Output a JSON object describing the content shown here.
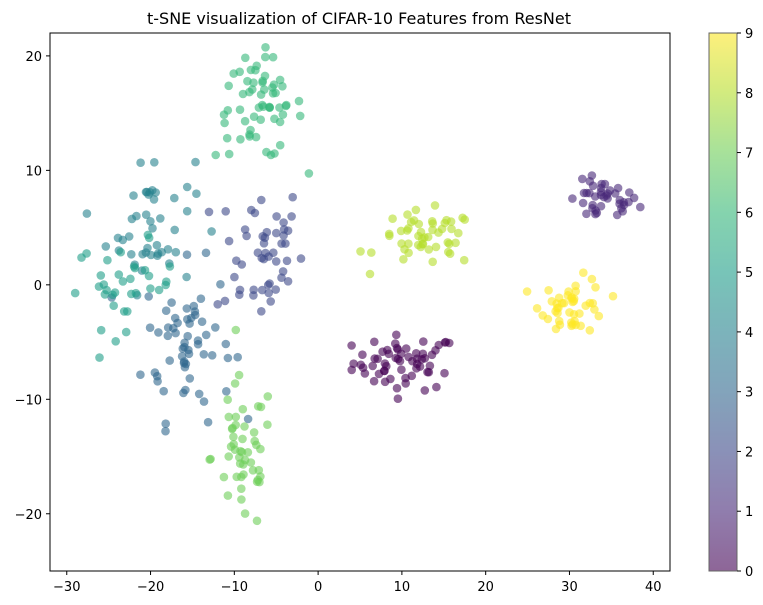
{
  "chart_data": {
    "type": "scatter",
    "title": "t-SNE visualization of CIFAR-10 Features from ResNet",
    "xlabel": "",
    "ylabel": "",
    "xlim": [
      -32,
      42
    ],
    "ylim": [
      -25,
      22
    ],
    "xticks": [
      -30,
      -20,
      -10,
      0,
      10,
      20,
      30,
      40
    ],
    "yticks": [
      -20,
      -10,
      0,
      10,
      20
    ],
    "grid": false,
    "legend": "none",
    "colormap": "viridis",
    "colorbar": {
      "min": 0,
      "max": 9,
      "ticks": [
        0,
        1,
        2,
        3,
        4,
        5,
        6,
        7,
        8,
        9
      ]
    },
    "point_alpha": 0.6,
    "clusters": [
      {
        "class": 0,
        "center": [
          10.5,
          -6.8
        ],
        "spread": [
          4.2,
          1.6
        ],
        "count": 60,
        "note": "dark purple band"
      },
      {
        "class": 1,
        "center": [
          34.0,
          7.3
        ],
        "spread": [
          2.8,
          1.2
        ],
        "count": 40
      },
      {
        "class": 2,
        "center": [
          -7.0,
          3.0
        ],
        "spread": [
          3.5,
          4.2
        ],
        "count": 50
      },
      {
        "class": 3,
        "center": [
          -15.5,
          -5.0
        ],
        "spread": [
          3.5,
          4.5
        ],
        "count": 60
      },
      {
        "class": 4,
        "center": [
          -20.0,
          5.5
        ],
        "spread": [
          3.5,
          4.0
        ],
        "count": 45
      },
      {
        "class": 5,
        "center": [
          -23.0,
          0.0
        ],
        "spread": [
          4.0,
          2.5
        ],
        "count": 35
      },
      {
        "class": 6,
        "center": [
          -7.0,
          15.5
        ],
        "spread": [
          3.5,
          3.0
        ],
        "count": 60
      },
      {
        "class": 7,
        "center": [
          -9.0,
          -15.0
        ],
        "spread": [
          2.5,
          4.5
        ],
        "count": 50
      },
      {
        "class": 8,
        "center": [
          13.0,
          4.0
        ],
        "spread": [
          4.0,
          1.6
        ],
        "count": 50
      },
      {
        "class": 9,
        "center": [
          30.5,
          -1.8
        ],
        "spread": [
          2.6,
          1.6
        ],
        "count": 45
      }
    ]
  }
}
